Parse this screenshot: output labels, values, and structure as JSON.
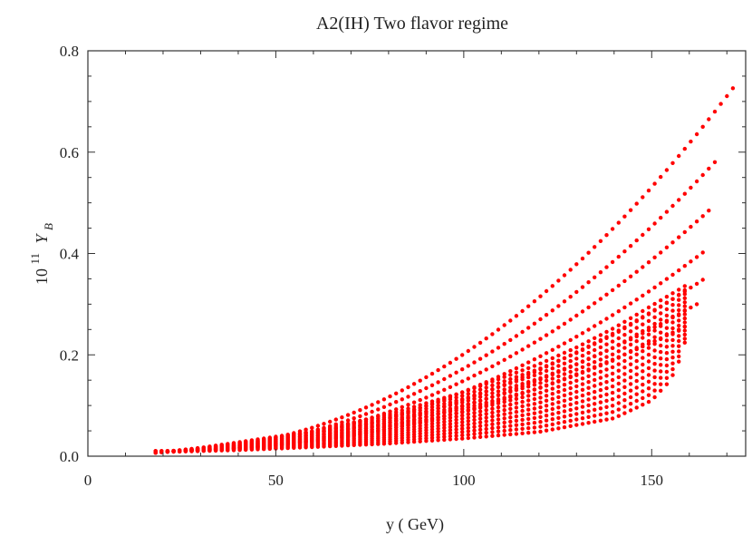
{
  "chart_data": {
    "type": "scatter",
    "title": "A2(IH) Two flavor regime",
    "xlabel": "y ( GeV)",
    "ylabel": {
      "base": "10",
      "exponent": "11",
      "symbol": "Y",
      "subscript": "B"
    },
    "xlim": [
      0,
      175
    ],
    "ylim": [
      0,
      0.8
    ],
    "xticks": [
      0,
      50,
      100,
      150
    ],
    "yticks": [
      0.0,
      0.2,
      0.4,
      0.6,
      0.8
    ],
    "xtick_labels": [
      "0",
      "50",
      "100",
      "150"
    ],
    "ytick_labels": [
      "0.0",
      "0.2",
      "0.4",
      "0.6",
      "0.8"
    ],
    "grid": false,
    "marker_color": "#ff0000",
    "series": [
      {
        "family": "upper-curves",
        "end_points": [
          {
            "x": 172,
            "y": 0.73
          },
          {
            "x": 168,
            "y": 0.59
          },
          {
            "x": 166,
            "y": 0.49
          },
          {
            "x": 165,
            "y": 0.41
          },
          {
            "x": 164,
            "y": 0.35
          },
          {
            "x": 162,
            "y": 0.3
          },
          {
            "x": 160,
            "y": 0.26
          }
        ],
        "start": {
          "x": 18,
          "y": 0.01
        }
      },
      {
        "family": "fan-column-top",
        "points": [
          {
            "x": 18,
            "y": 0.012
          },
          {
            "x": 30,
            "y": 0.03
          },
          {
            "x": 40,
            "y": 0.05
          },
          {
            "x": 50,
            "y": 0.07
          },
          {
            "x": 60,
            "y": 0.09
          },
          {
            "x": 70,
            "y": 0.12
          },
          {
            "x": 80,
            "y": 0.15
          },
          {
            "x": 90,
            "y": 0.19
          },
          {
            "x": 100,
            "y": 0.23
          },
          {
            "x": 110,
            "y": 0.28
          },
          {
            "x": 120,
            "y": 0.33
          },
          {
            "x": 130,
            "y": 0.39
          },
          {
            "x": 140,
            "y": 0.46
          },
          {
            "x": 150,
            "y": 0.54
          },
          {
            "x": 160,
            "y": 0.62
          },
          {
            "x": 172,
            "y": 0.73
          }
        ]
      },
      {
        "family": "fan-column-bottom",
        "points": [
          {
            "x": 18,
            "y": 0.008
          },
          {
            "x": 40,
            "y": 0.012
          },
          {
            "x": 60,
            "y": 0.018
          },
          {
            "x": 80,
            "y": 0.025
          },
          {
            "x": 100,
            "y": 0.035
          },
          {
            "x": 120,
            "y": 0.048
          },
          {
            "x": 140,
            "y": 0.075
          },
          {
            "x": 150,
            "y": 0.11
          },
          {
            "x": 155,
            "y": 0.15
          },
          {
            "x": 158,
            "y": 0.2
          },
          {
            "x": 160,
            "y": 0.26
          }
        ]
      }
    ]
  }
}
